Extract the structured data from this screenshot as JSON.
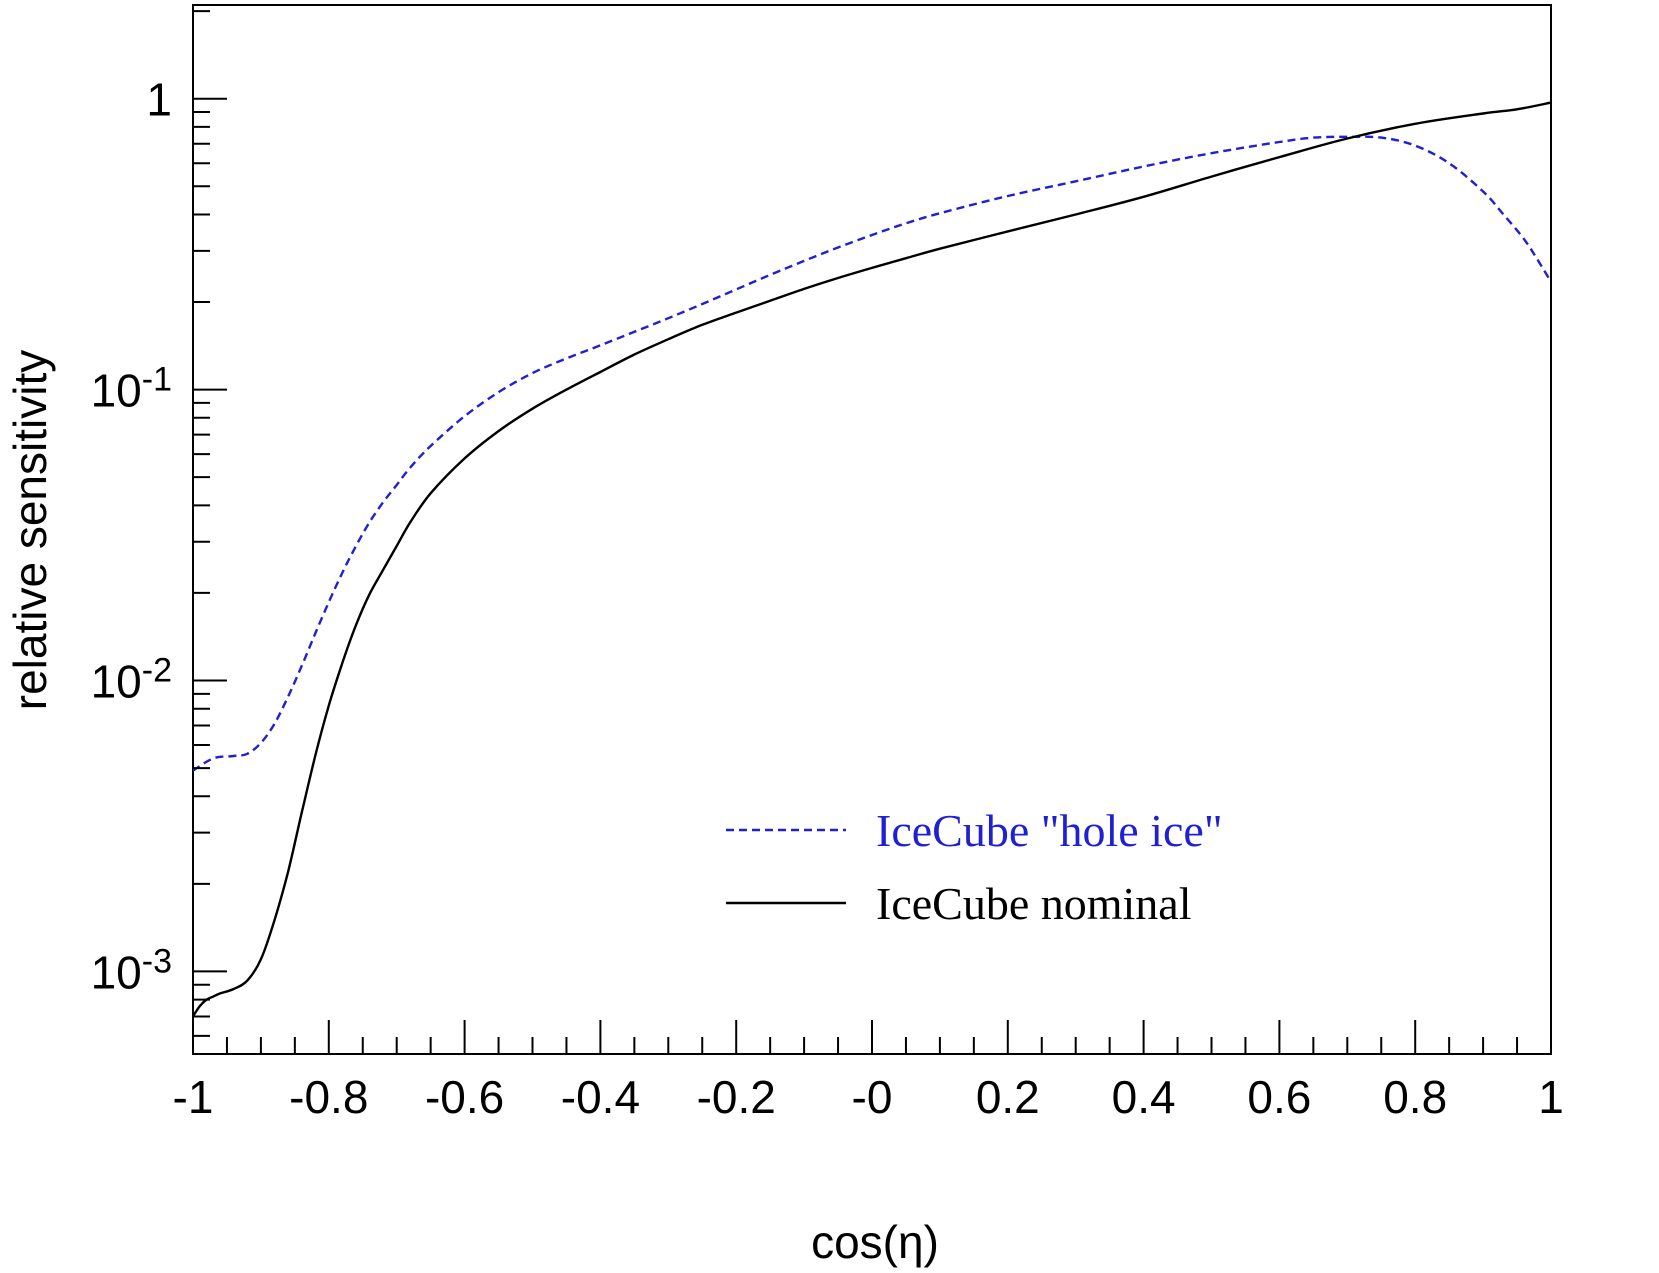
{
  "chart_data": {
    "type": "line",
    "title": "",
    "xlabel": "cos(η)",
    "ylabel": "relative sensitivity",
    "xlim": [
      -1,
      1
    ],
    "ylim": [
      0.00052,
      2.1
    ],
    "yscale": "log",
    "x_ticks": [
      {
        "value": -1,
        "label": "-1"
      },
      {
        "value": -0.8,
        "label": "-0.8"
      },
      {
        "value": -0.6,
        "label": "-0.6"
      },
      {
        "value": -0.4,
        "label": "-0.4"
      },
      {
        "value": -0.2,
        "label": "-0.2"
      },
      {
        "value": 0,
        "label": "-0"
      },
      {
        "value": 0.2,
        "label": "0.2"
      },
      {
        "value": 0.4,
        "label": "0.4"
      },
      {
        "value": 0.6,
        "label": "0.6"
      },
      {
        "value": 0.8,
        "label": "0.8"
      },
      {
        "value": 1,
        "label": "1"
      }
    ],
    "y_ticks": [
      {
        "value": 1,
        "base": "1",
        "exp": ""
      },
      {
        "value": 0.1,
        "base": "10",
        "exp": "-1"
      },
      {
        "value": 0.01,
        "base": "10",
        "exp": "-2"
      },
      {
        "value": 0.001,
        "base": "10",
        "exp": "-3"
      }
    ],
    "grid": false,
    "legend_position": "bottom-right",
    "series": [
      {
        "name": "IceCube \"hole ice\"",
        "color": "#1f1fd6",
        "dash": "dashed",
        "x": [
          -1.0,
          -0.97,
          -0.94,
          -0.92,
          -0.9,
          -0.88,
          -0.86,
          -0.84,
          -0.82,
          -0.8,
          -0.78,
          -0.76,
          -0.74,
          -0.72,
          -0.7,
          -0.68,
          -0.65,
          -0.6,
          -0.55,
          -0.5,
          -0.45,
          -0.4,
          -0.35,
          -0.3,
          -0.25,
          -0.2,
          -0.15,
          -0.1,
          -0.05,
          0.0,
          0.05,
          0.1,
          0.2,
          0.3,
          0.4,
          0.5,
          0.6,
          0.65,
          0.7,
          0.75,
          0.8,
          0.85,
          0.9,
          0.93,
          0.96,
          0.98,
          1.0
        ],
        "y": [
          0.0049,
          0.0054,
          0.0055,
          0.0056,
          0.0061,
          0.0071,
          0.0088,
          0.0112,
          0.0145,
          0.0186,
          0.0235,
          0.029,
          0.035,
          0.041,
          0.047,
          0.054,
          0.064,
          0.081,
          0.098,
          0.114,
          0.128,
          0.142,
          0.158,
          0.176,
          0.197,
          0.221,
          0.248,
          0.277,
          0.308,
          0.34,
          0.373,
          0.404,
          0.463,
          0.52,
          0.585,
          0.65,
          0.71,
          0.735,
          0.74,
          0.735,
          0.69,
          0.6,
          0.48,
          0.4,
          0.33,
          0.28,
          0.235
        ]
      },
      {
        "name": "IceCube nominal",
        "color": "#000000",
        "dash": "solid",
        "x": [
          -1.0,
          -0.99,
          -0.98,
          -0.97,
          -0.96,
          -0.94,
          -0.92,
          -0.9,
          -0.88,
          -0.86,
          -0.84,
          -0.82,
          -0.8,
          -0.78,
          -0.76,
          -0.74,
          -0.72,
          -0.7,
          -0.68,
          -0.65,
          -0.6,
          -0.55,
          -0.5,
          -0.45,
          -0.4,
          -0.35,
          -0.3,
          -0.25,
          -0.2,
          -0.15,
          -0.1,
          -0.05,
          0.0,
          0.05,
          0.1,
          0.2,
          0.3,
          0.4,
          0.5,
          0.6,
          0.7,
          0.8,
          0.9,
          0.95,
          1.0
        ],
        "y": [
          0.0007,
          0.00076,
          0.0008,
          0.00082,
          0.00084,
          0.00087,
          0.00093,
          0.0011,
          0.0015,
          0.0022,
          0.0035,
          0.0055,
          0.0082,
          0.0115,
          0.0155,
          0.0198,
          0.024,
          0.029,
          0.035,
          0.044,
          0.058,
          0.072,
          0.086,
          0.1,
          0.115,
          0.132,
          0.149,
          0.167,
          0.184,
          0.202,
          0.222,
          0.242,
          0.262,
          0.283,
          0.305,
          0.35,
          0.4,
          0.46,
          0.54,
          0.63,
          0.73,
          0.82,
          0.89,
          0.92,
          0.97
        ]
      }
    ]
  }
}
